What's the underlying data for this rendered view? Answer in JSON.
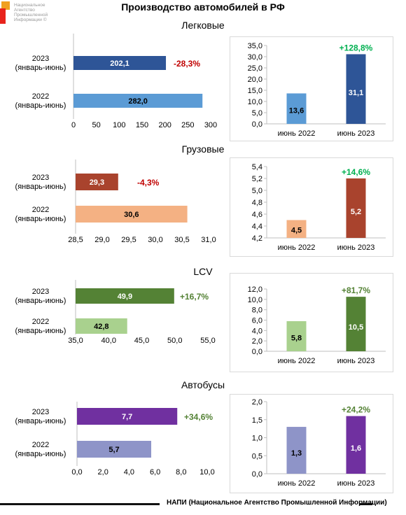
{
  "logo": {
    "text": "Национальное\nАгентство\nПромышленной\nИнформации ©"
  },
  "page_title": "Производство автомобилей в РФ",
  "footer": "НАПИ (Национальное Агентство Промышленной Информации)",
  "sections": [
    {
      "title": "Легковые"
    },
    {
      "title": "Грузовые"
    },
    {
      "title": "LCV"
    },
    {
      "title": "Автобусы"
    }
  ],
  "chart_data": [
    {
      "type": "bar",
      "orientation": "horizontal",
      "section": "Легковые",
      "categories": [
        "2023\n(январь-июнь)",
        "2022\n(январь-июнь)"
      ],
      "values": [
        202.1,
        282.0
      ],
      "value_labels": [
        "202,1",
        "282,0"
      ],
      "colors": [
        "#2e5597",
        "#5b9bd5"
      ],
      "change_label": "-28,3%",
      "change_color": "#c00000",
      "xlim": [
        0,
        300
      ],
      "ticks": [
        "0",
        "50",
        "100",
        "150",
        "200",
        "250",
        "300"
      ],
      "tick_values": [
        0,
        50,
        100,
        150,
        200,
        250,
        300
      ]
    },
    {
      "type": "bar",
      "orientation": "vertical",
      "section": "Легковые",
      "categories": [
        "июнь 2022",
        "июнь 2023"
      ],
      "values": [
        13.6,
        31.1
      ],
      "value_labels": [
        "13,6",
        "31,1"
      ],
      "colors": [
        "#5b9bd5",
        "#2e5597"
      ],
      "change_label": "+128,8%",
      "change_color": "#00b050",
      "ylim": [
        0,
        35
      ],
      "ticks": [
        "0,0",
        "5,0",
        "10,0",
        "15,0",
        "20,0",
        "25,0",
        "30,0",
        "35,0"
      ],
      "tick_values": [
        0,
        5,
        10,
        15,
        20,
        25,
        30,
        35
      ]
    },
    {
      "type": "bar",
      "orientation": "horizontal",
      "section": "Грузовые",
      "categories": [
        "2023\n(январь-июнь)",
        "2022\n(январь-июнь)"
      ],
      "values": [
        29.3,
        30.6
      ],
      "value_labels": [
        "29,3",
        "30,6"
      ],
      "colors": [
        "#a9432d",
        "#f4b183"
      ],
      "change_label": "-4,3%",
      "change_color": "#c00000",
      "xlim": [
        28.5,
        31.0
      ],
      "ticks": [
        "28,5",
        "29,0",
        "29,5",
        "30,0",
        "30,5",
        "31,0"
      ],
      "tick_values": [
        28.5,
        29.0,
        29.5,
        30.0,
        30.5,
        31.0
      ]
    },
    {
      "type": "bar",
      "orientation": "vertical",
      "section": "Грузовые",
      "categories": [
        "июнь 2022",
        "июнь 2023"
      ],
      "values": [
        4.5,
        5.2
      ],
      "value_labels": [
        "4,5",
        "5,2"
      ],
      "colors": [
        "#f4b183",
        "#a9432d"
      ],
      "change_label": "+14,6%",
      "change_color": "#00b050",
      "ylim": [
        4.2,
        5.4
      ],
      "ticks": [
        "4,2",
        "4,4",
        "4,6",
        "4,8",
        "5,0",
        "5,2",
        "5,4"
      ],
      "tick_values": [
        4.2,
        4.4,
        4.6,
        4.8,
        5.0,
        5.2,
        5.4
      ]
    },
    {
      "type": "bar",
      "orientation": "horizontal",
      "section": "LCV",
      "categories": [
        "2023\n(январь-июнь)",
        "2022\n(январь-июнь)"
      ],
      "values": [
        49.9,
        42.8
      ],
      "value_labels": [
        "49,9",
        "42,8"
      ],
      "colors": [
        "#548235",
        "#a9d18e"
      ],
      "change_label": "+16,7%",
      "change_color": "#548235",
      "xlim": [
        35,
        55
      ],
      "ticks": [
        "35,0",
        "40,0",
        "45,0",
        "50,0",
        "55,0"
      ],
      "tick_values": [
        35,
        40,
        45,
        50,
        55
      ]
    },
    {
      "type": "bar",
      "orientation": "vertical",
      "section": "LCV",
      "categories": [
        "июнь 2022",
        "июнь 2023"
      ],
      "values": [
        5.8,
        10.5
      ],
      "value_labels": [
        "5,8",
        "10,5"
      ],
      "colors": [
        "#a9d18e",
        "#548235"
      ],
      "change_label": "+81,7%",
      "change_color": "#548235",
      "ylim": [
        0,
        12
      ],
      "ticks": [
        "0,0",
        "2,0",
        "4,0",
        "6,0",
        "8,0",
        "10,0",
        "12,0"
      ],
      "tick_values": [
        0,
        2,
        4,
        6,
        8,
        10,
        12
      ]
    },
    {
      "type": "bar",
      "orientation": "horizontal",
      "section": "Автобусы",
      "categories": [
        "2023\n(январь-июнь)",
        "2022\n(январь-июнь)"
      ],
      "values": [
        7.7,
        5.7
      ],
      "value_labels": [
        "7,7",
        "5,7"
      ],
      "colors": [
        "#7030a0",
        "#8e94c8"
      ],
      "change_label": "+34,6%",
      "change_color": "#548235",
      "xlim": [
        0,
        10
      ],
      "ticks": [
        "0,0",
        "2,0",
        "4,0",
        "6,0",
        "8,0",
        "10,0"
      ],
      "tick_values": [
        0,
        2,
        4,
        6,
        8,
        10
      ]
    },
    {
      "type": "bar",
      "orientation": "vertical",
      "section": "Автобусы",
      "categories": [
        "июнь 2022",
        "июнь 2023"
      ],
      "values": [
        1.3,
        1.6
      ],
      "value_labels": [
        "1,3",
        "1,6"
      ],
      "colors": [
        "#8e94c8",
        "#7030a0"
      ],
      "change_label": "+24,2%",
      "change_color": "#548235",
      "ylim": [
        0,
        2
      ],
      "ticks": [
        "0,0",
        "0,5",
        "1,0",
        "1,5",
        "2,0"
      ],
      "tick_values": [
        0,
        0.5,
        1.0,
        1.5,
        2.0
      ]
    }
  ]
}
